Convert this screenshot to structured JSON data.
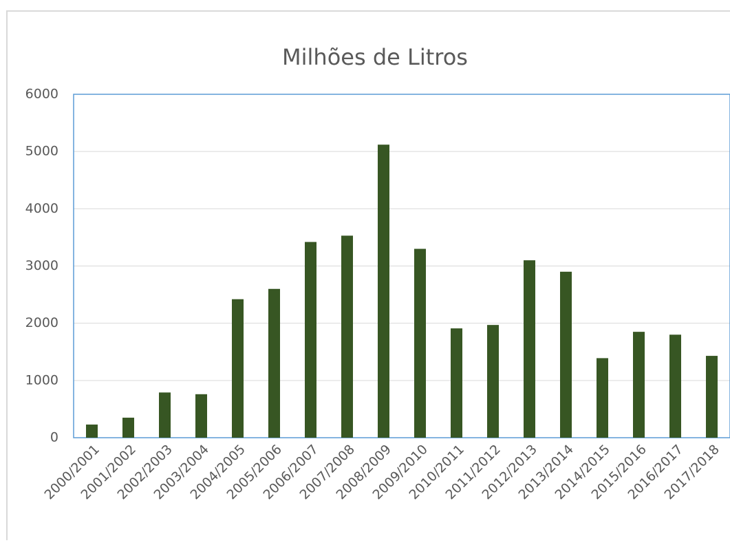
{
  "chart_data": {
    "type": "bar",
    "title": "Milhões de Litros",
    "categories": [
      "2000/2001",
      "2001/2002",
      "2002/2003",
      "2003/2004",
      "2004/2005",
      "2005/2006",
      "2006/2007",
      "2007/2008",
      "2008/2009",
      "2009/2010",
      "2010/2011",
      "2011/2012",
      "2012/2013",
      "2013/2014",
      "2014/2015",
      "2015/2016",
      "2016/2017",
      "2017/2018"
    ],
    "values": [
      230,
      350,
      790,
      760,
      2420,
      2600,
      3420,
      3530,
      5120,
      3300,
      1910,
      1970,
      3100,
      2900,
      1390,
      1850,
      1800,
      1430
    ],
    "color": "#375623",
    "ylim": [
      0,
      6000
    ],
    "yticks": [
      0,
      1000,
      2000,
      3000,
      4000,
      5000,
      6000
    ],
    "grid": true
  }
}
